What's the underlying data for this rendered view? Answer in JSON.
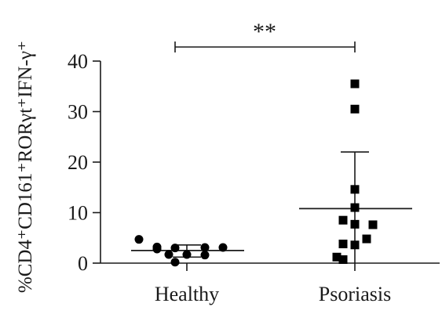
{
  "chart_data": {
    "type": "scatter",
    "ylabel": "%CD4⁺CD161⁺RORγt⁺IFN-γ⁺",
    "categories": [
      "Healthy",
      "Psoriasis"
    ],
    "ylim": [
      0,
      40
    ],
    "yticks": [
      0,
      10,
      20,
      30,
      40
    ],
    "significance": "**",
    "series": [
      {
        "category": "Healthy",
        "marker": "circle",
        "values": [
          4.7,
          3.2,
          3.1,
          3.1,
          3.0,
          2.8,
          1.7,
          1.7,
          1.6,
          0.2
        ],
        "mean": 2.5,
        "sd_upper": 3.6,
        "sd_lower": 1.2
      },
      {
        "category": "Psoriasis",
        "marker": "square",
        "values": [
          35.5,
          30.5,
          14.6,
          11.0,
          8.5,
          7.7,
          7.6,
          4.8,
          3.8,
          3.6,
          1.2,
          0.7
        ],
        "mean": 10.8,
        "sd_upper": 22.0,
        "sd_lower": 0
      }
    ]
  }
}
